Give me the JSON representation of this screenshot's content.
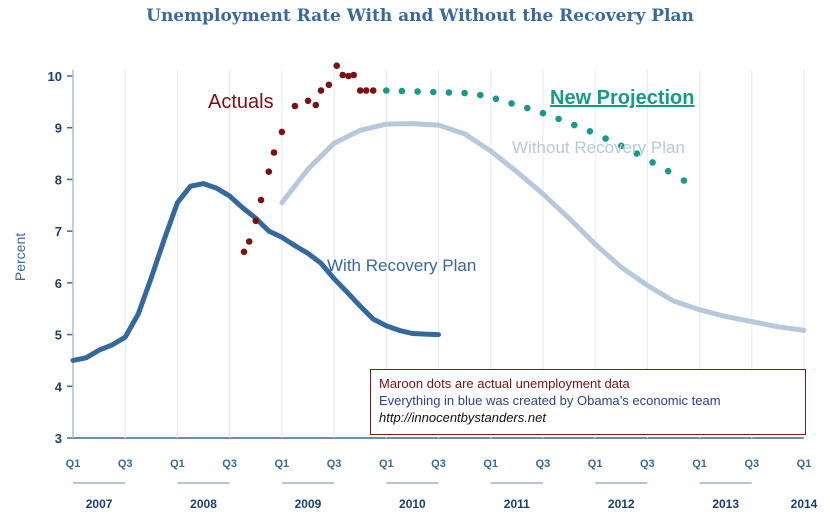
{
  "chart_data": {
    "type": "line",
    "title": "Unemployment Rate With and Without the Recovery Plan",
    "ylabel": "Percent",
    "xlabel": "",
    "ylim": [
      3,
      10
    ],
    "yticks": [
      3,
      4,
      5,
      6,
      7,
      8,
      9,
      10
    ],
    "grid": false,
    "x_quarter_labels": [
      "Q1",
      "Q3",
      "Q1",
      "Q3",
      "Q1",
      "Q3",
      "Q1",
      "Q3",
      "Q1",
      "Q3",
      "Q1",
      "Q3",
      "Q1",
      "Q3",
      "Q1"
    ],
    "years": [
      "2007",
      "2008",
      "2009",
      "2010",
      "2011",
      "2012",
      "2013",
      "2014"
    ],
    "series": [
      {
        "name": "With Recovery Plan",
        "color": "#3668a0",
        "style": "solid",
        "x": [
          0,
          0.5,
          1,
          1.5,
          2,
          2.5,
          3,
          3.5,
          4,
          4.5,
          5,
          5.5,
          6,
          6.5,
          7,
          7.5,
          8,
          8.5,
          9,
          9.5,
          10,
          10.5,
          11,
          11.5,
          12,
          12.5,
          13,
          13.5,
          14
        ],
        "values": [
          4.5,
          4.55,
          4.7,
          4.8,
          4.95,
          5.4,
          6.1,
          6.85,
          7.55,
          7.87,
          7.92,
          7.83,
          7.68,
          7.45,
          7.25,
          7.0,
          6.88,
          6.72,
          6.57,
          6.38,
          6.08,
          5.82,
          5.55,
          5.3,
          5.17,
          5.08,
          5.02,
          5.01,
          5.0
        ]
      },
      {
        "name": "Without Recovery Plan",
        "color": "#b8c8dc",
        "style": "solid",
        "x": [
          8,
          9,
          10,
          11,
          12,
          13,
          14,
          15,
          16,
          17,
          18,
          19,
          20,
          21,
          22,
          23,
          24,
          25,
          26,
          27,
          28
        ],
        "values": [
          7.55,
          8.2,
          8.7,
          8.95,
          9.07,
          9.08,
          9.05,
          8.88,
          8.55,
          8.15,
          7.72,
          7.25,
          6.75,
          6.3,
          5.95,
          5.65,
          5.48,
          5.35,
          5.25,
          5.15,
          5.08
        ]
      },
      {
        "name": "Actuals",
        "color": "#7a1212",
        "style": "dots",
        "x": [
          6.55,
          6.75,
          7.0,
          7.2,
          7.5,
          7.7,
          8.0,
          8.5,
          9.0,
          9.3,
          9.5,
          9.8,
          10.1,
          10.33,
          10.55,
          10.75,
          11.0,
          11.23,
          11.5
        ],
        "values": [
          6.6,
          6.8,
          7.2,
          7.6,
          8.15,
          8.52,
          8.92,
          9.42,
          9.52,
          9.44,
          9.72,
          9.83,
          10.2,
          10.02,
          10.0,
          10.02,
          9.72,
          9.72,
          9.72
        ]
      },
      {
        "name": "New Projection",
        "color": "#169a8a",
        "style": "dots",
        "x": [
          12.0,
          12.6,
          13.2,
          13.8,
          14.4,
          15.0,
          15.6,
          16.2,
          16.8,
          17.4,
          18.0,
          18.6,
          19.2,
          19.8,
          20.4,
          21.0,
          21.6,
          22.2,
          22.8,
          23.4
        ],
        "values": [
          9.72,
          9.71,
          9.7,
          9.69,
          9.68,
          9.67,
          9.63,
          9.56,
          9.47,
          9.38,
          9.28,
          9.17,
          9.05,
          8.93,
          8.79,
          8.65,
          8.5,
          8.33,
          8.16,
          7.98
        ]
      }
    ],
    "annotations": {
      "actuals": "Actuals",
      "new_projection": "New Projection",
      "without": "Without Recovery Plan",
      "with": "With Recovery Plan"
    },
    "note": {
      "line1": "Maroon dots are actual unemployment data",
      "line2": "Everything in blue was created by Obama’s economic team",
      "line3": "http://innocentbystanders.net"
    }
  }
}
